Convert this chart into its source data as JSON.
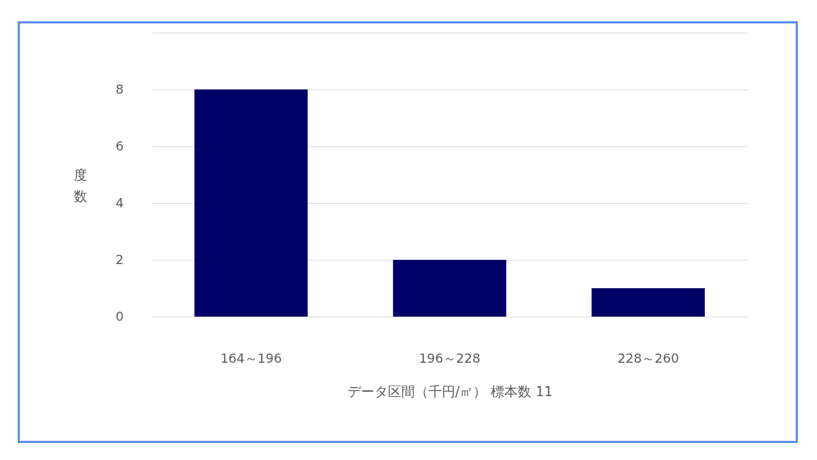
{
  "chart_data": {
    "type": "bar",
    "xlabel": "データ区間（千円/㎡） 標本数 11",
    "ylabel": "度数",
    "categories": [
      "164～196",
      "196～228",
      "228～260"
    ],
    "values": [
      8,
      2,
      1
    ],
    "color": "#000066",
    "ylim": [
      0,
      10
    ],
    "yticks": [
      0,
      2,
      4,
      6,
      8,
      {
        "value": 10,
        "label": null
      }
    ],
    "grid": "y"
  }
}
